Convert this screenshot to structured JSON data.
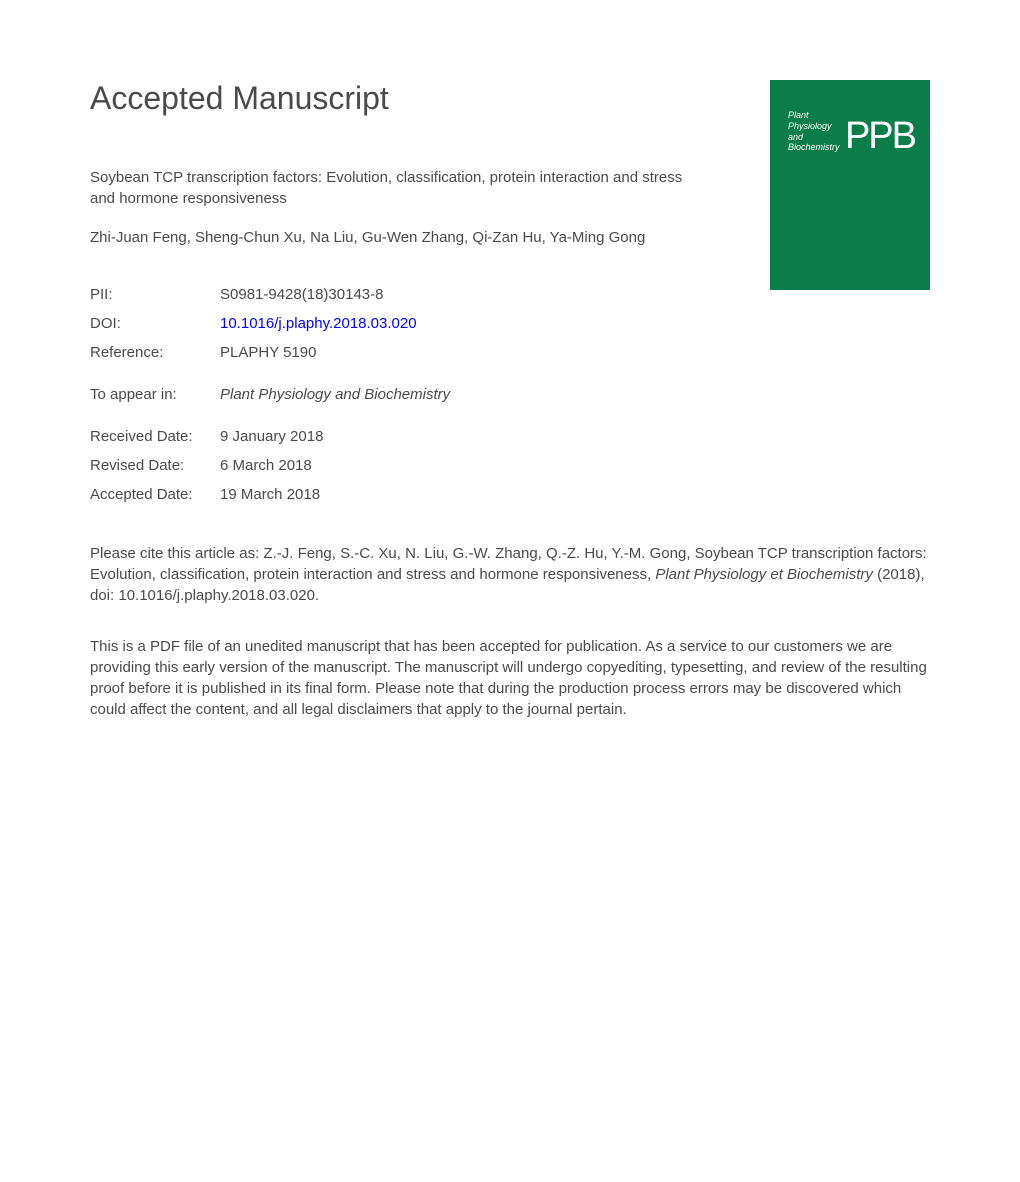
{
  "heading": "Accepted Manuscript",
  "title": "Soybean TCP transcription factors: Evolution, classification, protein interaction and stress and hormone responsiveness",
  "authors": "Zhi-Juan Feng, Sheng-Chun Xu, Na Liu, Gu-Wen Zhang, Qi-Zan Hu, Ya-Ming Gong",
  "journal_cover": {
    "title_line1": "Plant",
    "title_line2": "Physiology",
    "title_line3": "and",
    "title_line4": "Biochemistry",
    "abbreviation": "PPB",
    "background_color": "#0a7d4a"
  },
  "metadata": {
    "pii_label": "PII:",
    "pii_value": "S0981-9428(18)30143-8",
    "doi_label": "DOI:",
    "doi_value": "10.1016/j.plaphy.2018.03.020",
    "reference_label": "Reference:",
    "reference_value": "PLAPHY 5190"
  },
  "to_appear": {
    "label": "To appear in:",
    "value": "Plant Physiology and Biochemistry"
  },
  "dates": {
    "received_label": "Received Date:",
    "received_value": "9 January 2018",
    "revised_label": "Revised Date:",
    "revised_value": "6 March 2018",
    "accepted_label": "Accepted Date:",
    "accepted_value": "19 March 2018"
  },
  "citation": {
    "prefix": "Please cite this article as: Z.-J. Feng, S.-C. Xu, N. Liu, G.-W. Zhang, Q.-Z. Hu, Y.-M. Gong, Soybean TCP transcription factors: Evolution, classification, protein interaction and stress and hormone responsiveness, ",
    "journal": "Plant Physiology et Biochemistry",
    "suffix": " (2018), doi: 10.1016/j.plaphy.2018.03.020."
  },
  "disclaimer": "This is a PDF file of an unedited manuscript that has been accepted for publication. As a service to our customers we are providing this early version of the manuscript. The manuscript will undergo copyediting, typesetting, and review of the resulting proof before it is published in its final form. Please note that during the production process errors may be discovered which could affect the content, and all legal disclaimers that apply to the journal pertain.",
  "colors": {
    "text": "#4a4a4a",
    "link": "#0000ff",
    "background": "#ffffff",
    "journal_cover": "#0a7d4a"
  },
  "typography": {
    "heading_fontsize": 32,
    "body_fontsize": 15,
    "font_family": "Arial, Helvetica, sans-serif"
  }
}
